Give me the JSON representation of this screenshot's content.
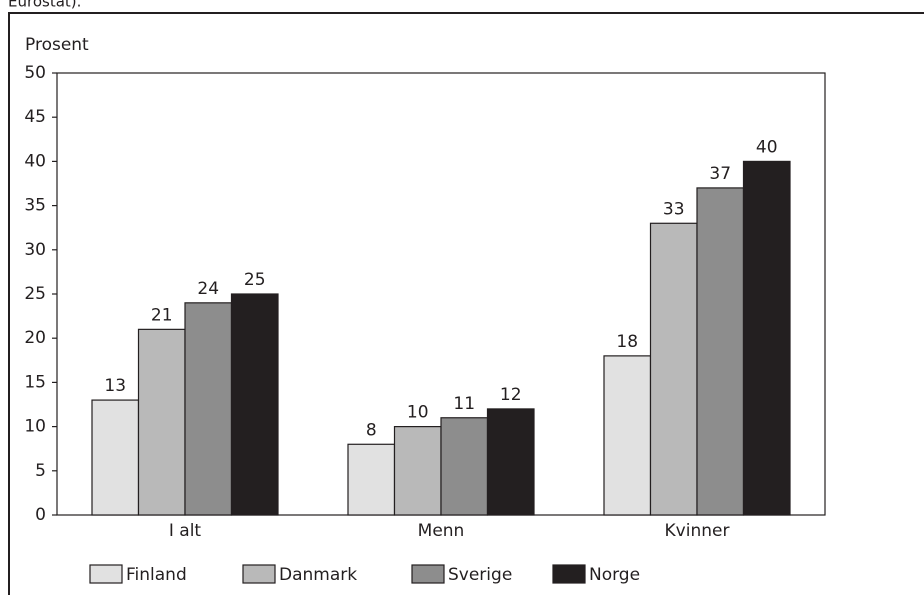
{
  "chart_data": {
    "type": "bar",
    "note": "Eurostat).",
    "ylabel": "Prosent",
    "categories": [
      "I alt",
      "Menn",
      "Kvinner"
    ],
    "series": [
      {
        "name": "Finland",
        "color": "#e1e1e1",
        "values": [
          13,
          8,
          18
        ]
      },
      {
        "name": "Danmark",
        "color": "#b9b9b9",
        "values": [
          21,
          10,
          33
        ]
      },
      {
        "name": "Sverige",
        "color": "#8d8d8d",
        "values": [
          24,
          11,
          37
        ]
      },
      {
        "name": "Norge",
        "color": "#231f20",
        "values": [
          25,
          12,
          40
        ]
      }
    ],
    "ylim": [
      0,
      50
    ],
    "yticks": [
      0,
      5,
      10,
      15,
      20,
      25,
      30,
      35,
      40,
      45,
      50
    ],
    "grid": false,
    "legend": "bottom",
    "data_labels": true
  }
}
